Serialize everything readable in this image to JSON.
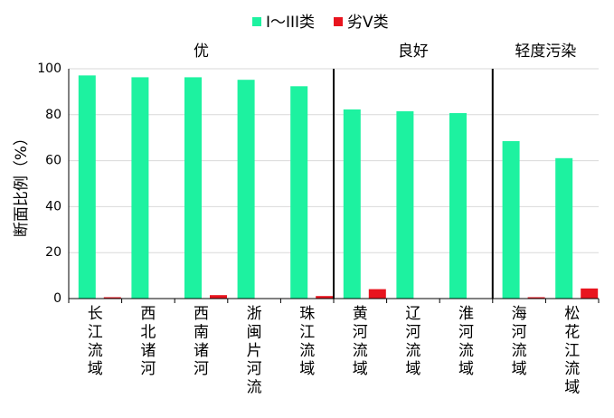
{
  "chart_data": {
    "type": "bar",
    "ylabel": "断面比例（%）",
    "ylim": [
      0,
      100
    ],
    "yticks": [
      0,
      20,
      40,
      60,
      80,
      100
    ],
    "grid": true,
    "legend_position": "top-center",
    "categories": [
      "长江流域",
      "西北诸河",
      "西南诸河",
      "浙闽片河流",
      "珠江流域",
      "黄河流域",
      "辽河流域",
      "淮河流域",
      "海河流域",
      "松花江流域"
    ],
    "series": [
      {
        "name": "I～III类",
        "color": "#1df2a0",
        "values": [
          97.1,
          96.3,
          96.3,
          95.2,
          92.4,
          82.3,
          81.5,
          80.7,
          68.5,
          61.1
        ]
      },
      {
        "name": "劣V类",
        "color": "#e8141e",
        "values": [
          0.4,
          0,
          1.5,
          0,
          1.1,
          4.1,
          0,
          0,
          0.4,
          4.4
        ]
      }
    ],
    "groups": [
      {
        "label": "优",
        "start": 0,
        "end": 4
      },
      {
        "label": "良好",
        "start": 5,
        "end": 7
      },
      {
        "label": "轻度污染",
        "start": 8,
        "end": 9
      }
    ]
  }
}
